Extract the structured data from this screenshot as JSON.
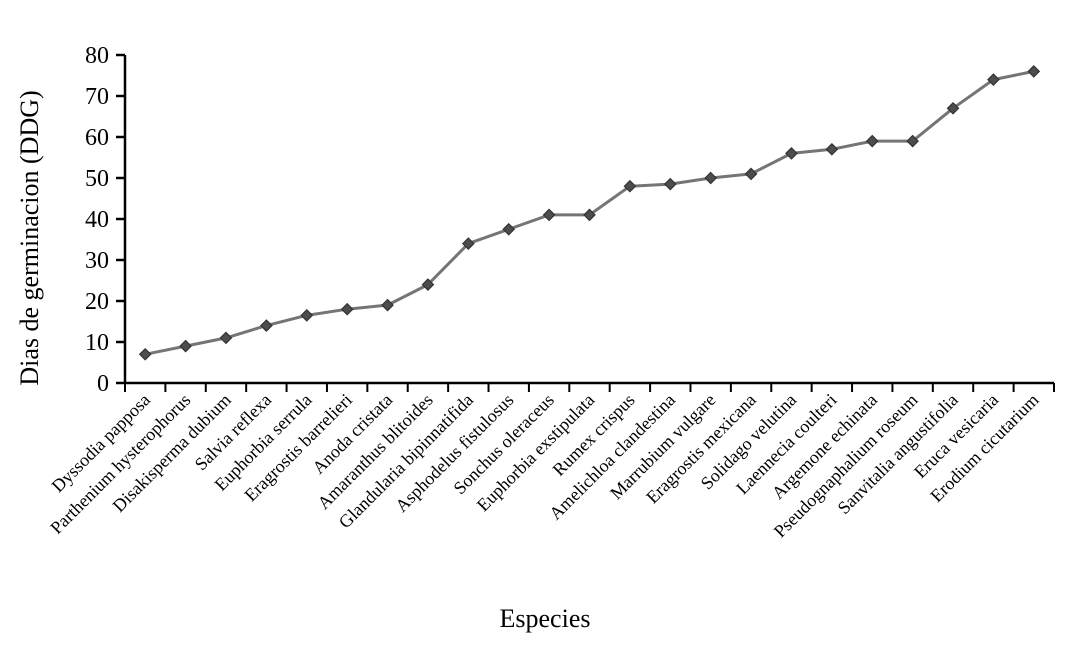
{
  "chart_data": {
    "type": "line",
    "title": "",
    "xlabel": "Especies",
    "ylabel": "Dias de germinacion (DDG)",
    "categories": [
      "Dyssodia papposa",
      "Parthenium hysterophorus",
      "Disakisperma dubium",
      "Salvia reflexa",
      "Euphorbia serrula",
      "Eragrostis barrelieri",
      "Anoda cristata",
      "Amaranthus blitoides",
      "Glandularia bipinnatifida",
      "Asphodelus fistulosus",
      "Sonchus oleraceus",
      "Euphorbia exstipulata",
      "Rumex crispus",
      "Amelichloa clandestina",
      "Marrubium vulgare",
      "Eragrostis mexicana",
      "Solidago velutina",
      "Laennecia coulteri",
      "Argemone echinata",
      "Pseudognaphalium roseum",
      "Sanvitalia angustifolia",
      "Eruca vesicaria",
      "Erodium cicutarium"
    ],
    "values": [
      7,
      9,
      11,
      14,
      16.5,
      18,
      19,
      24,
      34,
      37.5,
      41,
      41,
      48,
      48.5,
      50,
      51,
      56,
      57,
      59,
      59,
      67,
      74,
      76
    ],
    "ylim": [
      0,
      80
    ],
    "ytick_step": 10,
    "ytick_labels": [
      "0",
      "10",
      "20",
      "30",
      "40",
      "50",
      "60",
      "70",
      "80"
    ],
    "grid": false,
    "legend_position": "none",
    "marker": "diamond",
    "colors": {
      "line": "#757575",
      "marker_fill": "#4d4d4d",
      "marker_stroke": "#333333",
      "axis": "#000000",
      "text": "#000000",
      "background": "#ffffff"
    }
  }
}
